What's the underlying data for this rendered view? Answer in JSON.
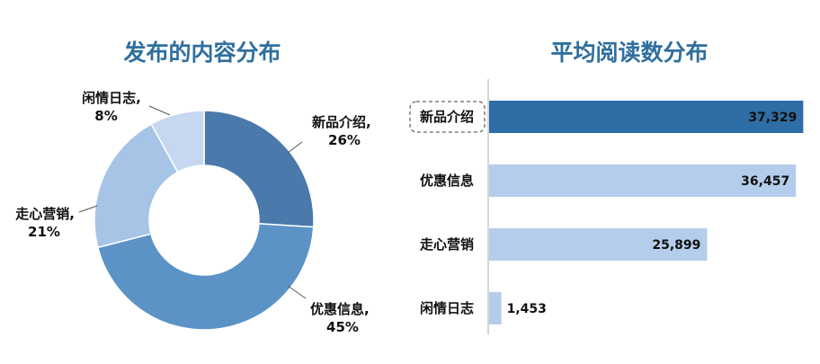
{
  "chart_data": [
    {
      "type": "pie",
      "variant": "donut",
      "title": "发布的内容分布",
      "slices": [
        {
          "name": "新品介绍",
          "value": 26,
          "label": "26%",
          "color": "#4a79ab"
        },
        {
          "name": "优惠信息",
          "value": 45,
          "label": "45%",
          "color": "#5b93c7"
        },
        {
          "name": "走心营销",
          "value": 21,
          "label": "21%",
          "color": "#a6c4e6"
        },
        {
          "name": "闲情日志",
          "value": 8,
          "label": "8%",
          "color": "#c6d8ef"
        }
      ]
    },
    {
      "type": "bar",
      "orientation": "horizontal",
      "title": "平均阅读数分布",
      "categories": [
        "新品介绍",
        "优惠信息",
        "走心营销",
        "闲情日志"
      ],
      "values": [
        37329,
        36457,
        25899,
        1453
      ],
      "value_labels": [
        "37,329",
        "36,457",
        "25,899",
        "1,453"
      ],
      "highlighted_category": "新品介绍",
      "xlim": [
        0,
        39000
      ],
      "colors": {
        "highlight": "#2e6da6",
        "default": "#b4cdeb"
      }
    }
  ]
}
